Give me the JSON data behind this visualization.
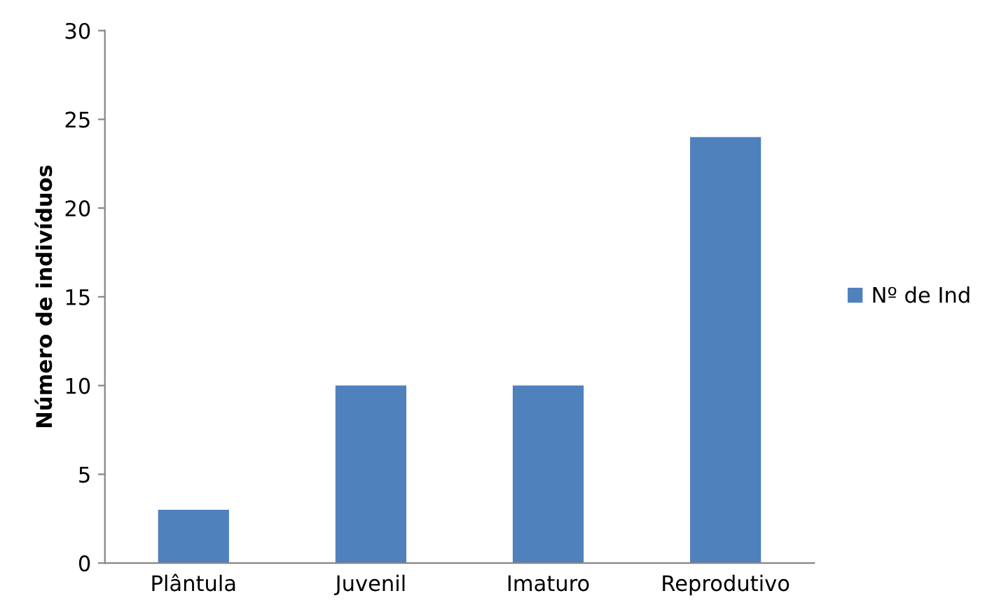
{
  "chart_data": {
    "type": "bar",
    "ylabel": "Número de indivíduos",
    "categories": [
      "Plântula",
      "Juvenil",
      "Imaturo",
      "Reprodutivo"
    ],
    "series": [
      {
        "name": "Nº de Ind",
        "color": "#4f81bd",
        "values": [
          3,
          10,
          10,
          24
        ]
      }
    ],
    "ylim": [
      0,
      30
    ],
    "yticks": [
      0,
      5,
      10,
      15,
      20,
      25,
      30
    ],
    "grid": false,
    "legend": "right"
  }
}
